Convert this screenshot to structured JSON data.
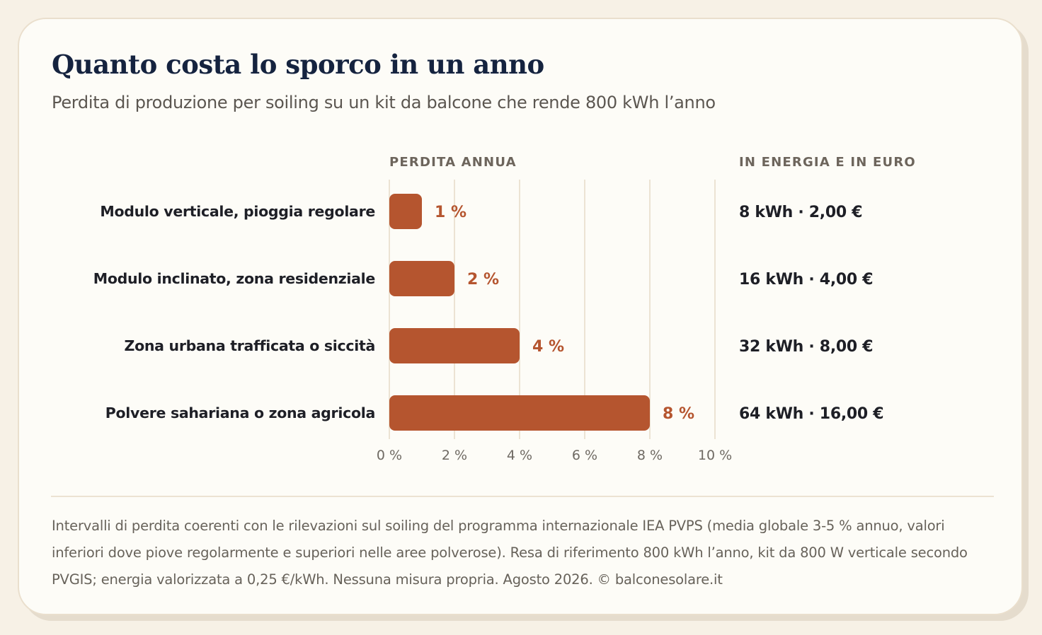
{
  "title": "Quanto costa lo sporco in un anno",
  "subtitle": "Perdita di produzione per soiling su un kit da balcone che rende 800 kWh l’anno",
  "columns": {
    "loss": "PERDITA ANNUA",
    "energy": "IN ENERGIA E IN EURO"
  },
  "chart_data": {
    "type": "bar",
    "orientation": "horizontal",
    "title": "Quanto costa lo sporco in un anno",
    "subtitle": "Perdita di produzione per soiling su un kit da balcone che rende 800 kWh l’anno",
    "categories": [
      "Modulo verticale, pioggia regolare",
      "Modulo inclinato, zona residenziale",
      "Zona urbana trafficata o siccità",
      "Polvere sahariana o zona agricola"
    ],
    "values": [
      1,
      2,
      4,
      8
    ],
    "value_labels": [
      "1 %",
      "2 %",
      "4 %",
      "8 %"
    ],
    "energy_labels": [
      "8 kWh · 2,00 €",
      "16 kWh · 4,00 €",
      "32 kWh · 8,00 €",
      "64 kWh · 16,00 €"
    ],
    "xlim": [
      0,
      10
    ],
    "xticks": [
      0,
      2,
      4,
      6,
      8,
      10
    ],
    "xtick_labels": [
      "0 %",
      "2 %",
      "4 %",
      "6 %",
      "8 %",
      "10 %"
    ],
    "grid": true,
    "bar_color": "#b5552f",
    "label_color": "#b5552f"
  },
  "footnote": "Intervalli di perdita coerenti con le rilevazioni sul soiling del programma internazionale IEA PVPS (media globale 3-5 % annuo, valori inferiori dove piove regolarmente e superiori nelle aree polverose). Resa di riferimento 800 kWh l’anno, kit da 800 W verticale secondo PVGIS; energia valorizzata a 0,25 €/kWh. Nessuna misura propria. Agosto 2026. © balconesolare.it"
}
